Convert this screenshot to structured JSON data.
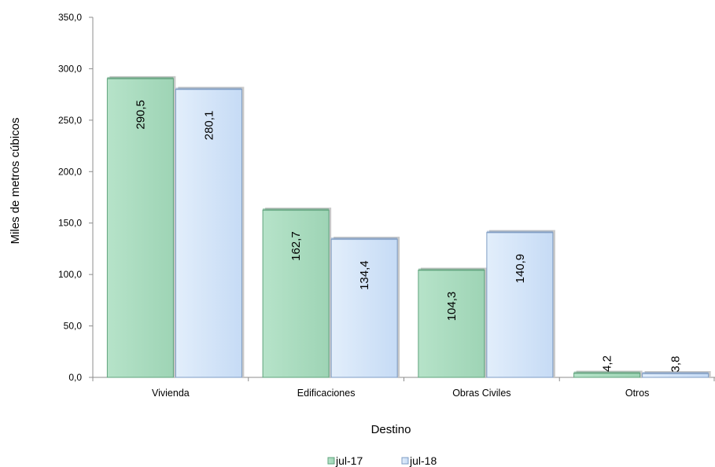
{
  "chart_data": {
    "type": "bar",
    "categories": [
      "Vivienda",
      "Edificaciones",
      "Obras Civiles",
      "Otros"
    ],
    "series": [
      {
        "name": "jul-17",
        "values": [
          290.5,
          162.7,
          104.3,
          4.2
        ],
        "labels": [
          "290,5",
          "162,7",
          "104,3",
          "4,2"
        ],
        "color": "#a9dcbf",
        "border": "#5fa37c"
      },
      {
        "name": "jul-18",
        "values": [
          280.1,
          134.4,
          140.9,
          3.8
        ],
        "labels": [
          "280,1",
          "134,4",
          "140,9",
          "3,8"
        ],
        "color": "#cfe2f8",
        "border": "#7e9cc4"
      }
    ],
    "yticks": [
      0,
      50,
      100,
      150,
      200,
      250,
      300,
      350
    ],
    "ytick_labels": [
      "0,0",
      "50,0",
      "100,0",
      "150,0",
      "200,0",
      "250,0",
      "300,0",
      "350,0"
    ],
    "ylim": [
      0,
      350
    ],
    "xlabel": "Destino",
    "ylabel": "Miles de metros cúbicos",
    "legend_position": "bottom-center",
    "grid": false
  }
}
